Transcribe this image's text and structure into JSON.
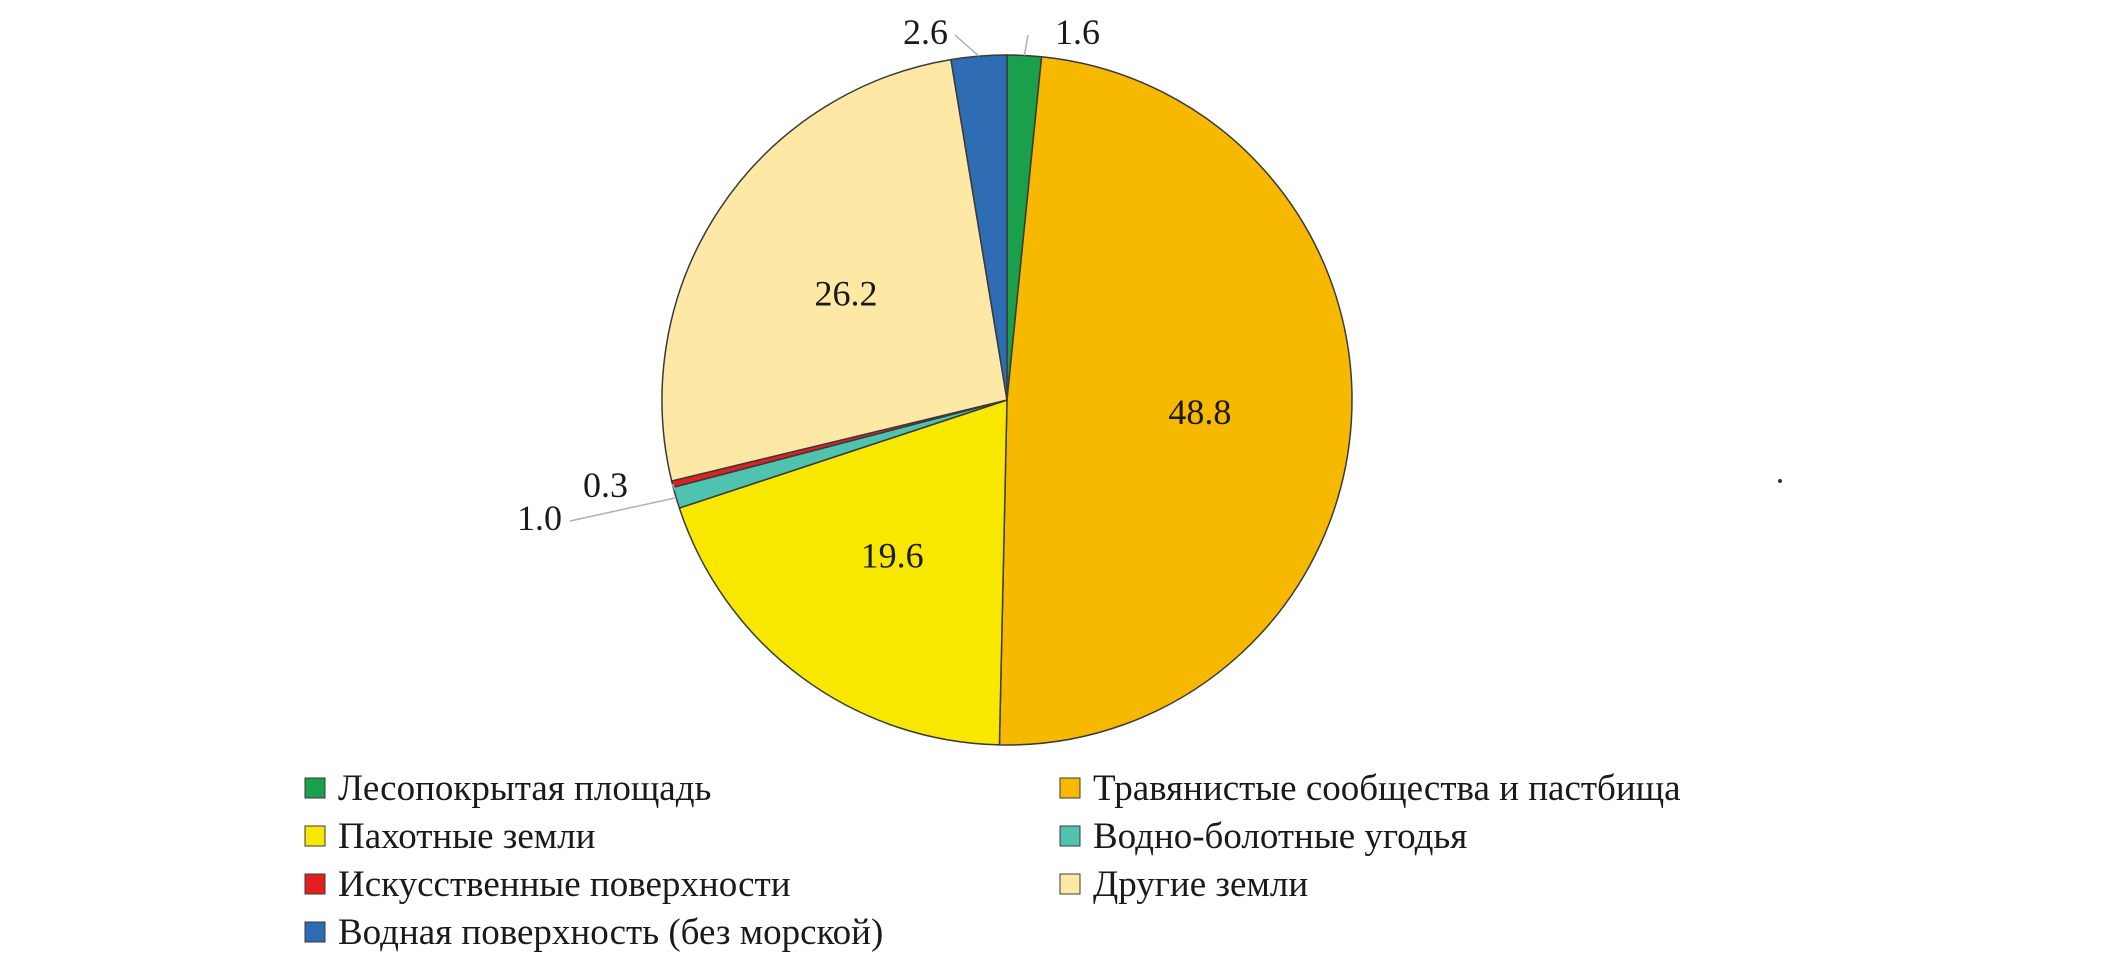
{
  "chart_data": {
    "type": "pie",
    "title": "",
    "start_angle_deg": 0,
    "direction": "clockwise",
    "legend_position": "bottom",
    "slices": [
      {
        "name": "Лесопокрытая площадь",
        "value": 1.6,
        "label": "1.6",
        "color": "#1aa04a",
        "label_style": "outside"
      },
      {
        "name": "Травянистые сообщества и пастбища",
        "value": 48.8,
        "label": "48.8",
        "color": "#f7b800",
        "label_style": "inside"
      },
      {
        "name": "Пахотные земли",
        "value": 19.6,
        "label": "19.6",
        "color": "#f8e800",
        "label_style": "inside"
      },
      {
        "name": "Водно-болотные угодья",
        "value": 1.0,
        "label": "1.0",
        "color": "#4fc3ad",
        "label_style": "outside"
      },
      {
        "name": "Искусственные поверхности",
        "value": 0.3,
        "label": "0.3",
        "color": "#e02020",
        "label_style": "outside"
      },
      {
        "name": "Другие земли",
        "value": 26.2,
        "label": "26.2",
        "color": "#fde8a6",
        "label_style": "inside"
      },
      {
        "name": "Водная поверхность (без морской)",
        "value": 2.6,
        "label": "2.6",
        "color": "#2e6db4",
        "label_style": "outside"
      }
    ],
    "legend": [
      {
        "name": "Лесопокрытая площадь",
        "color": "#1aa04a"
      },
      {
        "name": "Травянистые сообщества и пастбища",
        "color": "#f7b800"
      },
      {
        "name": "Пахотные земли",
        "color": "#f8e800"
      },
      {
        "name": "Водно-болотные угодья",
        "color": "#4fc3ad"
      },
      {
        "name": "Искусственные поверхности",
        "color": "#e02020"
      },
      {
        "name": "Другие земли",
        "color": "#fde8a6"
      },
      {
        "name": "Водная поверхность (без морской)",
        "color": "#2e6db4"
      }
    ]
  }
}
